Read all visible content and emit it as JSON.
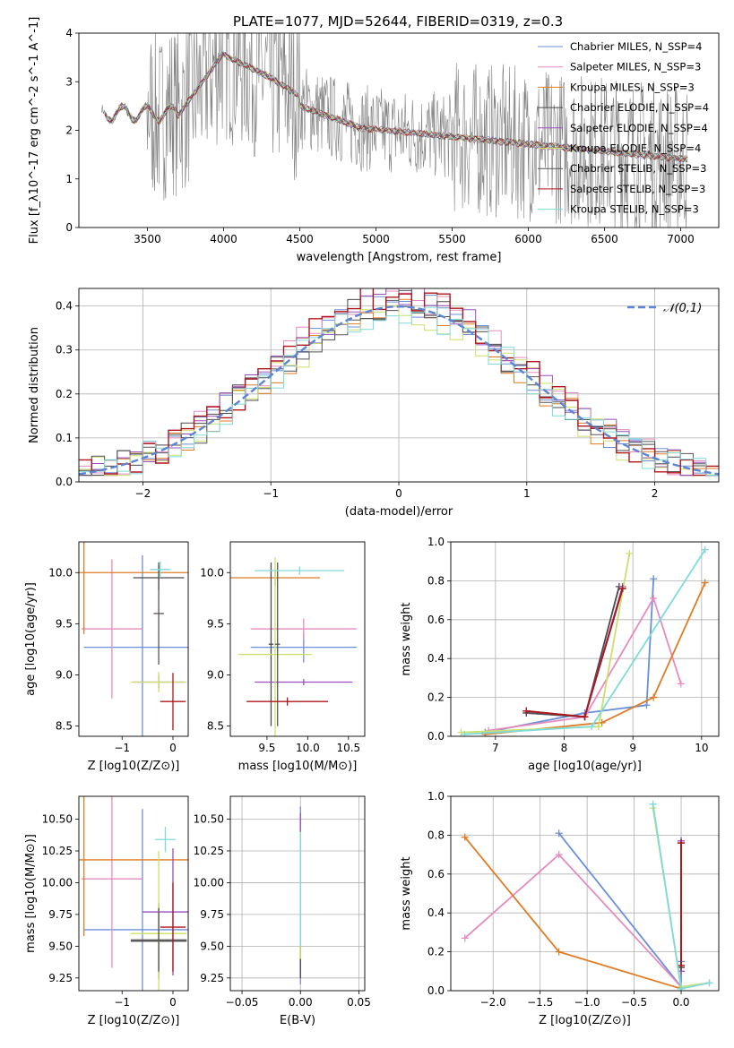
{
  "figure_title": "PLATE=1077, MJD=52644, FIBERID=0319, z=0.3",
  "chart_data": [
    {
      "id": "spectrum",
      "type": "line",
      "xlabel": "wavelength [Angstrom, rest frame]",
      "ylabel": "Flux [f_λ10^-17 erg cm^-2 s^-1 A^-1]",
      "xlim": [
        3050,
        7250
      ],
      "ylim": [
        0,
        4
      ],
      "xticks": [
        3500,
        4000,
        4500,
        5000,
        5500,
        6000,
        6500,
        7000
      ],
      "yticks": [
        0,
        1,
        2,
        3,
        4
      ],
      "grid": false,
      "legend_position": "top-right",
      "data_range": [
        3200,
        7050
      ],
      "series": [
        {
          "name": "Chabrier MILES, N_SSP=4",
          "color": "#6a8fd8"
        },
        {
          "name": "Salpeter MILES, N_SSP=3",
          "color": "#e58bbf"
        },
        {
          "name": "Kroupa MILES, N_SSP=3",
          "color": "#e07b24"
        },
        {
          "name": "Chabrier ELODIE, N_SSP=4",
          "color": "#4a4a4a"
        },
        {
          "name": "Salpeter ELODIE, N_SSP=4",
          "color": "#9b4fc0"
        },
        {
          "name": "Kroupa ELODIE, N_SSP=4",
          "color": "#c9e06a"
        },
        {
          "name": "Chabrier STELIB, N_SSP=3",
          "color": "#555555"
        },
        {
          "name": "Salpeter STELIB, N_SSP=3",
          "color": "#b0151b"
        },
        {
          "name": "Kroupa STELIB, N_SSP=3",
          "color": "#7fdada"
        }
      ],
      "observed_color": "#808080"
    },
    {
      "id": "residuals",
      "type": "step",
      "xlabel": "(data-model)/error",
      "ylabel": "Normed distribution",
      "xlim": [
        -2.5,
        2.5
      ],
      "ylim": [
        0,
        0.44
      ],
      "xticks": [
        -2,
        -1,
        0,
        1,
        2
      ],
      "yticks": [
        0.0,
        0.1,
        0.2,
        0.3,
        0.4
      ],
      "grid": true,
      "legend_position": "top-right",
      "reference_curve": {
        "name": "𝒩(0,1)",
        "mean": 0,
        "sigma": 1,
        "color": "#5b85d6"
      }
    },
    {
      "id": "z-age",
      "type": "errorbar",
      "xlabel": "Z [log10(Z/Z⊙)]",
      "ylabel": "age [log10(age/yr)]",
      "xlim": [
        -1.85,
        0.3
      ],
      "ylim": [
        8.4,
        10.3
      ],
      "xticks": [
        -1,
        0
      ],
      "yticks": [
        8.5,
        9.0,
        9.5,
        10.0
      ],
      "grid": false,
      "points": [
        {
          "color": "#6a8fd8",
          "x": -0.6,
          "xerr": 1.15,
          "y": 9.27,
          "yerr": 0.9
        },
        {
          "color": "#e58bbf",
          "x": -1.2,
          "xerr": 0.6,
          "y": 9.45,
          "yerr": 0.68
        },
        {
          "color": "#e07b24",
          "x": -1.75,
          "xerr": 2.05,
          "y": 10.0,
          "yerr": 0.6
        },
        {
          "color": "#4a4a4a",
          "x": -0.28,
          "xerr": 0.5,
          "y": 9.95,
          "yerr": 0.12
        },
        {
          "color": "#9b4fc0",
          "x": -0.28,
          "xerr": 0.5,
          "y": 8.93,
          "yerr": 0.06
        },
        {
          "color": "#c9e06a",
          "x": -0.28,
          "xerr": 0.55,
          "y": 8.93,
          "yerr": 0.1
        },
        {
          "color": "#555555",
          "x": -0.28,
          "xerr": 0.1,
          "y": 9.6,
          "yerr": 0.5
        },
        {
          "color": "#b0151b",
          "x": 0.0,
          "xerr": 0.25,
          "y": 8.74,
          "yerr": 0.28
        },
        {
          "color": "#7fdada",
          "x": -0.25,
          "xerr": 0.2,
          "y": 10.03,
          "yerr": 0.08
        }
      ]
    },
    {
      "id": "mass-age",
      "type": "errorbar",
      "xlabel": "mass [log10(M/M⊙)]",
      "ylabel": "",
      "xlim": [
        9.05,
        10.7
      ],
      "ylim": [
        8.4,
        10.3
      ],
      "xticks": [
        9.5,
        10.0,
        10.5
      ],
      "yticks": [
        8.5,
        9.0,
        9.5,
        10.0
      ],
      "grid": false,
      "points": [
        {
          "color": "#6a8fd8",
          "x": 9.95,
          "xerr": 0.65,
          "y": 9.27,
          "yerr": 0.15
        },
        {
          "color": "#e58bbf",
          "x": 9.95,
          "xerr": 0.65,
          "y": 9.45,
          "yerr": 0.1
        },
        {
          "color": "#e07b24",
          "x": 9.6,
          "xerr": 0.55,
          "y": 9.95,
          "yerr": 0.08
        },
        {
          "color": "#4a4a4a",
          "x": 9.55,
          "xerr": 0.03,
          "y": 9.3,
          "yerr": 0.8
        },
        {
          "color": "#9b4fc0",
          "x": 9.95,
          "xerr": 0.6,
          "y": 8.93,
          "yerr": 0.03
        },
        {
          "color": "#c9e06a",
          "x": 9.6,
          "xerr": 0.45,
          "y": 9.2,
          "yerr": 0.95
        },
        {
          "color": "#555555",
          "x": 9.63,
          "xerr": 0.03,
          "y": 9.3,
          "yerr": 0.8
        },
        {
          "color": "#b0151b",
          "x": 9.75,
          "xerr": 0.5,
          "y": 8.74,
          "yerr": 0.04
        },
        {
          "color": "#7fdada",
          "x": 9.9,
          "xerr": 0.55,
          "y": 10.02,
          "yerr": 0.04
        }
      ]
    },
    {
      "id": "age-weight",
      "type": "line",
      "xlabel": "age [log10(age/yr)]",
      "ylabel": "mass weight",
      "xlim": [
        6.35,
        10.25
      ],
      "ylim": [
        0,
        1
      ],
      "xticks": [
        7,
        8,
        9,
        10
      ],
      "yticks": [
        0.0,
        0.2,
        0.4,
        0.6,
        0.8,
        1.0
      ],
      "grid": true,
      "series": [
        {
          "color": "#6a8fd8",
          "x": [
            6.85,
            8.3,
            9.2,
            9.3
          ],
          "y": [
            0.02,
            0.12,
            0.16,
            0.81
          ]
        },
        {
          "color": "#e58bbf",
          "x": [
            6.9,
            8.3,
            9.3,
            9.7
          ],
          "y": [
            0.03,
            0.1,
            0.71,
            0.27
          ]
        },
        {
          "color": "#e07b24",
          "x": [
            6.85,
            8.55,
            9.3,
            10.05
          ],
          "y": [
            0.01,
            0.07,
            0.2,
            0.79
          ]
        },
        {
          "color": "#4a4a4a",
          "x": [
            7.45,
            8.3,
            8.8
          ],
          "y": [
            0.13,
            0.1,
            0.77
          ]
        },
        {
          "color": "#9b4fc0",
          "x": [
            7.45,
            8.3,
            8.85
          ],
          "y": [
            0.12,
            0.1,
            0.77
          ]
        },
        {
          "color": "#c9e06a",
          "x": [
            6.5,
            8.5,
            8.95
          ],
          "y": [
            0.02,
            0.05,
            0.94
          ]
        },
        {
          "color": "#555555",
          "x": [
            7.45,
            8.3,
            8.85
          ],
          "y": [
            0.12,
            0.1,
            0.76
          ]
        },
        {
          "color": "#b0151b",
          "x": [
            7.45,
            8.3,
            8.85
          ],
          "y": [
            0.13,
            0.1,
            0.76
          ]
        },
        {
          "color": "#7fdada",
          "x": [
            6.55,
            8.4,
            10.05
          ],
          "y": [
            0.01,
            0.05,
            0.96
          ]
        }
      ]
    },
    {
      "id": "z-mass",
      "type": "errorbar",
      "xlabel": "Z [log10(Z/Z⊙)]",
      "ylabel": "mass [log10(M/M⊙)]",
      "xlim": [
        -1.85,
        0.3
      ],
      "ylim": [
        9.15,
        10.68
      ],
      "xticks": [
        -1,
        0
      ],
      "yticks": [
        9.25,
        9.5,
        9.75,
        10.0,
        10.25,
        10.5
      ],
      "grid": false,
      "points": [
        {
          "color": "#6a8fd8",
          "x": -0.6,
          "xerr": 1.15,
          "y": 9.63,
          "yerr": 0.95
        },
        {
          "color": "#e58bbf",
          "x": -1.2,
          "xerr": 0.6,
          "y": 10.03,
          "yerr": 0.7
        },
        {
          "color": "#e07b24",
          "x": -1.75,
          "xerr": 2.05,
          "y": 10.18,
          "yerr": 0.6
        },
        {
          "color": "#4a4a4a",
          "x": -0.28,
          "xerr": 0.55,
          "y": 9.54,
          "yerr": 0.3
        },
        {
          "color": "#9b4fc0",
          "x": 0.0,
          "xerr": 0.6,
          "y": 9.77,
          "yerr": 0.5
        },
        {
          "color": "#c9e06a",
          "x": -0.28,
          "xerr": 0.55,
          "y": 9.6,
          "yerr": 0.65
        },
        {
          "color": "#555555",
          "x": -0.28,
          "xerr": 0.55,
          "y": 9.55,
          "yerr": 0.25
        },
        {
          "color": "#b0151b",
          "x": 0.0,
          "xerr": 0.25,
          "y": 9.65,
          "yerr": 0.35
        },
        {
          "color": "#7fdada",
          "x": -0.15,
          "xerr": 0.2,
          "y": 10.34,
          "yerr": 0.1
        }
      ]
    },
    {
      "id": "ebv-mass",
      "type": "errorbar",
      "xlabel": "E(B-V)",
      "ylabel": "",
      "xlim": [
        -0.06,
        0.055
      ],
      "ylim": [
        9.15,
        10.68
      ],
      "xticks": [
        -0.05,
        0.0,
        0.05
      ],
      "yticks": [
        9.25,
        9.5,
        9.75,
        10.0,
        10.25,
        10.5
      ],
      "grid": true,
      "points": [
        {
          "color": "#6a8fd8",
          "x": 0.0,
          "xerr": 0.0,
          "y": 9.9,
          "yerr": 0.7
        },
        {
          "color": "#9b4fc0",
          "x": 0.0,
          "xerr": 0.0,
          "y": 9.9,
          "yerr": 0.65
        },
        {
          "color": "#4a4a4a",
          "x": 0.0,
          "xerr": 0.0,
          "y": 9.6,
          "yerr": 0.35
        },
        {
          "color": "#c9e06a",
          "x": 0.0,
          "xerr": 0.0,
          "y": 9.9,
          "yerr": 0.5
        },
        {
          "color": "#7fdada",
          "x": 0.0,
          "xerr": 0.0,
          "y": 9.95,
          "yerr": 0.45
        }
      ]
    },
    {
      "id": "z-weight",
      "type": "line",
      "xlabel": "Z [log10(Z/Z⊙)]",
      "ylabel": "mass weight",
      "xlim": [
        -2.45,
        0.4
      ],
      "ylim": [
        0,
        1
      ],
      "xticks": [
        -2.0,
        -1.5,
        -1.0,
        -0.5,
        0.0
      ],
      "yticks": [
        0.0,
        0.2,
        0.4,
        0.6,
        0.8,
        1.0
      ],
      "grid": true,
      "series": [
        {
          "color": "#6a8fd8",
          "x": [
            -1.3,
            0.0,
            0.0
          ],
          "y": [
            0.81,
            0.02,
            0.15
          ]
        },
        {
          "color": "#e58bbf",
          "x": [
            -2.3,
            -1.3,
            0.0
          ],
          "y": [
            0.27,
            0.7,
            0.02
          ]
        },
        {
          "color": "#e07b24",
          "x": [
            -2.3,
            -1.3,
            0.0
          ],
          "y": [
            0.79,
            0.2,
            0.01
          ]
        },
        {
          "color": "#4a4a4a",
          "x": [
            0.0,
            0.0
          ],
          "y": [
            0.77,
            0.12
          ]
        },
        {
          "color": "#9b4fc0",
          "x": [
            0.0,
            0.0
          ],
          "y": [
            0.77,
            0.1
          ]
        },
        {
          "color": "#c9e06a",
          "x": [
            -0.3,
            0.0,
            0.3
          ],
          "y": [
            0.94,
            0.02,
            0.04
          ]
        },
        {
          "color": "#555555",
          "x": [
            0.0,
            0.0
          ],
          "y": [
            0.76,
            0.12
          ]
        },
        {
          "color": "#b0151b",
          "x": [
            0.0,
            0.0
          ],
          "y": [
            0.76,
            0.13
          ]
        },
        {
          "color": "#7fdada",
          "x": [
            -0.3,
            0.0,
            0.3
          ],
          "y": [
            0.96,
            0.01,
            0.04
          ]
        }
      ]
    }
  ]
}
